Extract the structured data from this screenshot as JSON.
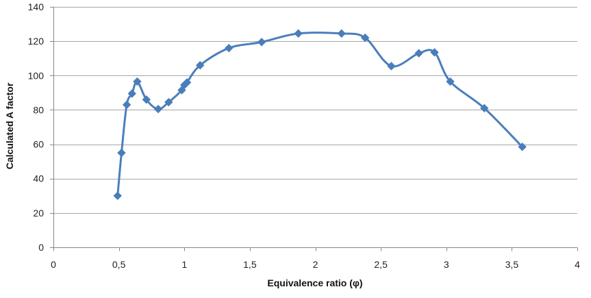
{
  "chart_data": {
    "type": "line",
    "title": "",
    "xlabel": "Equivalence ratio (φ)",
    "ylabel": "Calculated A factor",
    "xlim": [
      0,
      4
    ],
    "ylim": [
      0,
      140
    ],
    "x_ticks": [
      0,
      0.5,
      1,
      1.5,
      2,
      2.5,
      3,
      3.5,
      4
    ],
    "x_tick_labels": [
      "0",
      "0,5",
      "1",
      "1,5",
      "2",
      "2,5",
      "3",
      "3,5",
      "4"
    ],
    "y_ticks": [
      0,
      20,
      40,
      60,
      80,
      100,
      120,
      140
    ],
    "y_tick_labels": [
      "0",
      "20",
      "40",
      "60",
      "80",
      "100",
      "120",
      "140"
    ],
    "grid": "horizontal",
    "smooth": true,
    "marker": "diamond",
    "series": [
      {
        "color": "#4a7ebb",
        "points": [
          [
            0.49,
            30
          ],
          [
            0.52,
            55
          ],
          [
            0.56,
            83
          ],
          [
            0.6,
            89.5
          ],
          [
            0.64,
            96.5
          ],
          [
            0.71,
            86
          ],
          [
            0.8,
            80.5
          ],
          [
            0.88,
            84.5
          ],
          [
            0.98,
            91.5
          ],
          [
            1.0,
            94.5
          ],
          [
            1.02,
            96
          ],
          [
            1.12,
            106
          ],
          [
            1.34,
            116
          ],
          [
            1.59,
            119.5
          ],
          [
            1.87,
            124.5
          ],
          [
            2.2,
            124.5
          ],
          [
            2.38,
            122
          ],
          [
            2.58,
            105.5
          ],
          [
            2.79,
            113
          ],
          [
            2.91,
            113.5
          ],
          [
            3.03,
            96.5
          ],
          [
            3.29,
            81
          ],
          [
            3.58,
            58.5
          ]
        ]
      }
    ]
  }
}
